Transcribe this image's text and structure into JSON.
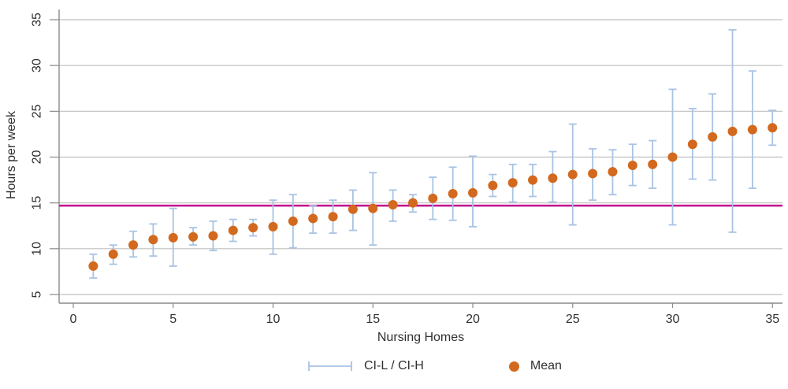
{
  "figure": {
    "ylabel": "Hours per week",
    "xlabel": "Nursing Homes",
    "legend": {
      "ci_label": "CI-L / CI-H",
      "mean_label": "Mean"
    }
  },
  "colors": {
    "mean": "#d2691e",
    "ci": "#a8c3e4",
    "reference": "#c2008e",
    "grid": "#bfbfbf",
    "axis": "#8a8a8a",
    "tick_text": "#303030",
    "background": "#ffffff"
  },
  "chart_data": {
    "type": "scatter",
    "title": "",
    "xlabel": "Nursing Homes",
    "ylabel": "Hours per week",
    "xlim": [
      -0.7,
      35.6
    ],
    "ylim": [
      4,
      36.1
    ],
    "xticks": [
      0,
      5,
      10,
      15,
      20,
      25,
      30,
      35
    ],
    "yticks": [
      5,
      10,
      15,
      20,
      25,
      30,
      35
    ],
    "grid": "horizontal",
    "legend_position": "bottom",
    "reference_line": {
      "value": 14.7,
      "color": "#c2008e"
    },
    "series": [
      {
        "name": "Mean",
        "type": "point",
        "color": "#d2691e"
      },
      {
        "name": "CI-L / CI-H",
        "type": "errorbar",
        "color": "#a8c3e4"
      }
    ],
    "x": [
      1,
      2,
      3,
      4,
      5,
      6,
      7,
      8,
      9,
      10,
      11,
      12,
      13,
      14,
      15,
      16,
      17,
      18,
      19,
      20,
      21,
      22,
      23,
      24,
      25,
      26,
      27,
      28,
      29,
      30,
      31,
      32,
      33,
      34,
      35
    ],
    "mean": [
      8.1,
      9.4,
      10.4,
      11.0,
      11.2,
      11.3,
      11.4,
      12.0,
      12.3,
      12.4,
      13.0,
      13.3,
      13.5,
      14.3,
      14.4,
      14.8,
      15.0,
      15.5,
      16.0,
      16.1,
      16.9,
      17.2,
      17.5,
      17.7,
      18.1,
      18.2,
      18.4,
      19.1,
      19.2,
      20.0,
      21.4,
      22.2,
      22.8,
      23.0,
      23.2
    ],
    "ci_l": [
      6.8,
      8.3,
      9.1,
      9.2,
      8.1,
      10.4,
      9.8,
      10.8,
      11.4,
      9.4,
      10.1,
      11.7,
      11.7,
      12.0,
      10.4,
      13.0,
      14.0,
      13.2,
      13.1,
      12.4,
      15.7,
      15.1,
      15.7,
      15.1,
      12.6,
      15.3,
      15.9,
      16.9,
      16.6,
      12.6,
      17.6,
      17.5,
      11.8,
      16.6,
      21.3
    ],
    "ci_h": [
      9.4,
      10.4,
      11.9,
      12.7,
      14.4,
      12.3,
      13.0,
      13.2,
      13.2,
      15.3,
      15.9,
      14.7,
      15.3,
      16.4,
      18.3,
      16.4,
      15.9,
      17.8,
      18.9,
      20.1,
      18.1,
      19.2,
      19.2,
      20.6,
      23.6,
      20.9,
      20.8,
      21.4,
      21.8,
      27.4,
      25.3,
      26.9,
      33.9,
      29.4,
      25.1
    ]
  }
}
